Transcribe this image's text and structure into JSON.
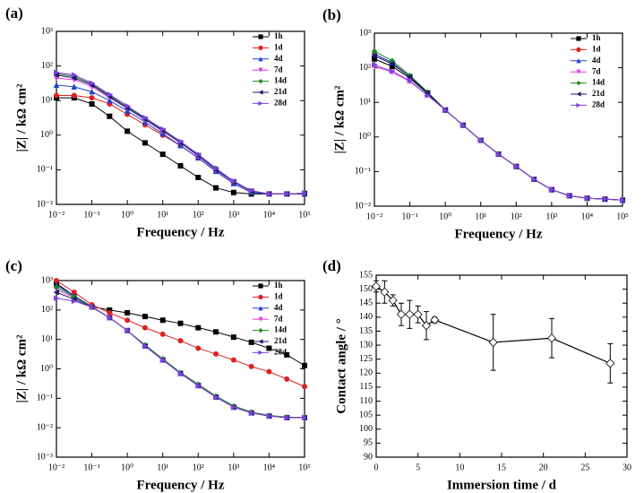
{
  "chart_data": [
    {
      "type": "line",
      "panel_label": "(a)",
      "xlabel": "Frequency / Hz",
      "ylabel": "|Z| / kΩ cm²",
      "xscale": "log",
      "yscale": "log",
      "legend": "upper right",
      "xlim": [
        0.01,
        100000
      ],
      "ylim": [
        0.01,
        1000
      ],
      "xticks": [
        {
          "value": 0.01,
          "label": "10⁻²"
        },
        {
          "value": 0.1,
          "label": "10⁻¹"
        },
        {
          "value": 1,
          "label": "10⁰"
        },
        {
          "value": 10,
          "label": "10¹"
        },
        {
          "value": 100,
          "label": "10²"
        },
        {
          "value": 1000,
          "label": "10³"
        },
        {
          "value": 10000,
          "label": "10⁴"
        },
        {
          "value": 100000,
          "label": "10⁵"
        }
      ],
      "yticks": [
        {
          "value": 0.01,
          "label": "10⁻²"
        },
        {
          "value": 0.1,
          "label": "10⁻¹"
        },
        {
          "value": 1,
          "label": "10⁰"
        },
        {
          "value": 10,
          "label": "10¹"
        },
        {
          "value": 100,
          "label": "10²"
        },
        {
          "value": 1000,
          "label": "10³"
        }
      ],
      "x": [
        0.01,
        0.0316,
        0.1,
        0.316,
        1,
        3.16,
        10,
        31.6,
        100,
        316,
        1000,
        3162,
        10000,
        31623,
        100000
      ],
      "series": [
        {
          "name": "1h",
          "color": "#000000",
          "marker": "square",
          "values": [
            12,
            12,
            8,
            3.5,
            1.3,
            0.6,
            0.28,
            0.13,
            0.06,
            0.03,
            0.022,
            0.02,
            0.02,
            0.02,
            0.02
          ]
        },
        {
          "name": "1d",
          "color": "#e02020",
          "marker": "circle",
          "values": [
            14,
            14,
            12,
            8,
            4,
            2,
            1,
            0.5,
            0.22,
            0.09,
            0.04,
            0.022,
            0.02,
            0.02,
            0.02
          ]
        },
        {
          "name": "4d",
          "color": "#1f3fd0",
          "marker": "triangle-up",
          "values": [
            28,
            25,
            18,
            10,
            5,
            2.4,
            1.1,
            0.5,
            0.22,
            0.09,
            0.04,
            0.022,
            0.02,
            0.02,
            0.02
          ]
        },
        {
          "name": "7d",
          "color": "#e040e0",
          "marker": "triangle-down",
          "values": [
            45,
            40,
            25,
            12,
            6,
            2.8,
            1.3,
            0.6,
            0.25,
            0.1,
            0.045,
            0.024,
            0.02,
            0.02,
            0.021
          ]
        },
        {
          "name": "14d",
          "color": "#1a8a1a",
          "marker": "diamond",
          "values": [
            60,
            50,
            30,
            14,
            6.5,
            3,
            1.4,
            0.62,
            0.27,
            0.11,
            0.045,
            0.024,
            0.02,
            0.02,
            0.021
          ]
        },
        {
          "name": "21d",
          "color": "#1a1a6a",
          "marker": "triangle-left",
          "values": [
            55,
            45,
            28,
            13,
            6,
            2.9,
            1.35,
            0.6,
            0.26,
            0.1,
            0.045,
            0.024,
            0.02,
            0.02,
            0.021
          ]
        },
        {
          "name": "28d",
          "color": "#8040e0",
          "marker": "triangle-right",
          "values": [
            65,
            55,
            32,
            15,
            7,
            3.2,
            1.5,
            0.66,
            0.28,
            0.11,
            0.047,
            0.025,
            0.02,
            0.02,
            0.021
          ]
        }
      ]
    },
    {
      "type": "line",
      "panel_label": "(b)",
      "xlabel": "Frequency / Hz",
      "ylabel": "|Z| / kΩ cm²",
      "xscale": "log",
      "yscale": "log",
      "legend": "upper right",
      "xlim": [
        0.01,
        100000
      ],
      "ylim": [
        0.01,
        1000
      ],
      "xticks": [
        {
          "value": 0.01,
          "label": "10⁻²"
        },
        {
          "value": 0.1,
          "label": "10⁻¹"
        },
        {
          "value": 1,
          "label": "10⁰"
        },
        {
          "value": 10,
          "label": "10¹"
        },
        {
          "value": 100,
          "label": "10²"
        },
        {
          "value": 1000,
          "label": "10³"
        },
        {
          "value": 10000,
          "label": "10⁴"
        },
        {
          "value": 100000,
          "label": "10⁵"
        }
      ],
      "yticks": [
        {
          "value": 0.01,
          "label": "10⁻²"
        },
        {
          "value": 0.1,
          "label": "10⁻¹"
        },
        {
          "value": 1,
          "label": "10⁰"
        },
        {
          "value": 10,
          "label": "10¹"
        },
        {
          "value": 100,
          "label": "10²"
        },
        {
          "value": 1000,
          "label": "10³"
        }
      ],
      "x": [
        0.01,
        0.0316,
        0.1,
        0.316,
        1,
        3.16,
        10,
        31.6,
        100,
        316,
        1000,
        3162,
        10000,
        31623,
        100000
      ],
      "series": [
        {
          "name": "1h",
          "color": "#000000",
          "marker": "square",
          "values": [
            180,
            110,
            50,
            18,
            6,
            2.2,
            0.8,
            0.32,
            0.14,
            0.06,
            0.03,
            0.02,
            0.017,
            0.016,
            0.015
          ]
        },
        {
          "name": "1d",
          "color": "#e02020",
          "marker": "circle",
          "values": [
            250,
            140,
            55,
            19,
            6,
            2.2,
            0.8,
            0.32,
            0.14,
            0.06,
            0.03,
            0.02,
            0.017,
            0.016,
            0.015
          ]
        },
        {
          "name": "4d",
          "color": "#1f3fd0",
          "marker": "triangle-up",
          "values": [
            250,
            140,
            55,
            19,
            6,
            2.2,
            0.8,
            0.32,
            0.14,
            0.06,
            0.03,
            0.02,
            0.017,
            0.016,
            0.015
          ]
        },
        {
          "name": "7d",
          "color": "#e040e0",
          "marker": "triangle-down",
          "values": [
            110,
            75,
            40,
            16,
            6,
            2.2,
            0.8,
            0.32,
            0.14,
            0.06,
            0.03,
            0.02,
            0.017,
            0.016,
            0.015
          ]
        },
        {
          "name": "14d",
          "color": "#1a8a1a",
          "marker": "diamond",
          "values": [
            300,
            160,
            60,
            20,
            6,
            2.2,
            0.8,
            0.32,
            0.14,
            0.06,
            0.03,
            0.02,
            0.017,
            0.016,
            0.015
          ]
        },
        {
          "name": "21d",
          "color": "#1a1a6a",
          "marker": "triangle-left",
          "values": [
            220,
            130,
            55,
            19,
            6,
            2.2,
            0.8,
            0.32,
            0.14,
            0.06,
            0.03,
            0.02,
            0.017,
            0.016,
            0.015
          ]
        },
        {
          "name": "28d",
          "color": "#8040e0",
          "marker": "triangle-right",
          "values": [
            120,
            80,
            42,
            16,
            6,
            2.2,
            0.8,
            0.32,
            0.14,
            0.06,
            0.03,
            0.02,
            0.017,
            0.016,
            0.015
          ]
        }
      ]
    },
    {
      "type": "line",
      "panel_label": "(c)",
      "xlabel": "Frequency / Hz",
      "ylabel": "|Z| / kΩ cm²",
      "xscale": "log",
      "yscale": "log",
      "legend": "upper right",
      "xlim": [
        0.01,
        100000
      ],
      "ylim": [
        0.001,
        1000
      ],
      "xticks": [
        {
          "value": 0.01,
          "label": "10⁻²"
        },
        {
          "value": 0.1,
          "label": "10⁻¹"
        },
        {
          "value": 1,
          "label": "10⁰"
        },
        {
          "value": 10,
          "label": "10¹"
        },
        {
          "value": 100,
          "label": "10²"
        },
        {
          "value": 1000,
          "label": "10³"
        },
        {
          "value": 10000,
          "label": "10⁴"
        },
        {
          "value": 100000,
          "label": "10⁵"
        }
      ],
      "yticks": [
        {
          "value": 0.001,
          "label": "10⁻³"
        },
        {
          "value": 0.01,
          "label": "10⁻²"
        },
        {
          "value": 0.1,
          "label": "10⁻¹"
        },
        {
          "value": 1,
          "label": "10⁰"
        },
        {
          "value": 10,
          "label": "10¹"
        },
        {
          "value": 100,
          "label": "10²"
        },
        {
          "value": 1000,
          "label": "10³"
        }
      ],
      "x": [
        0.01,
        0.0316,
        0.1,
        0.316,
        1,
        3.16,
        10,
        31.6,
        100,
        316,
        1000,
        3162,
        10000,
        31623,
        100000
      ],
      "series": [
        {
          "name": "1h",
          "color": "#000000",
          "marker": "square",
          "values": [
            800,
            300,
            130,
            100,
            80,
            60,
            45,
            35,
            25,
            18,
            12,
            8,
            5,
            3,
            1.3
          ]
        },
        {
          "name": "1d",
          "color": "#e02020",
          "marker": "circle",
          "values": [
            1000,
            400,
            150,
            80,
            45,
            25,
            15,
            9,
            5,
            3.2,
            2,
            1.2,
            0.8,
            0.45,
            0.25
          ]
        },
        {
          "name": "4d",
          "color": "#1f3fd0",
          "marker": "triangle-up",
          "values": [
            700,
            300,
            130,
            55,
            20,
            6,
            2,
            0.7,
            0.27,
            0.11,
            0.05,
            0.032,
            0.025,
            0.022,
            0.022
          ]
        },
        {
          "name": "7d",
          "color": "#e040e0",
          "marker": "triangle-down",
          "values": [
            500,
            260,
            125,
            55,
            20,
            6,
            2,
            0.7,
            0.27,
            0.11,
            0.05,
            0.032,
            0.025,
            0.022,
            0.022
          ]
        },
        {
          "name": "14d",
          "color": "#1a8a1a",
          "marker": "diamond",
          "values": [
            600,
            280,
            125,
            55,
            20,
            6.5,
            2.2,
            0.75,
            0.3,
            0.12,
            0.055,
            0.034,
            0.026,
            0.023,
            0.022
          ]
        },
        {
          "name": "21d",
          "color": "#1a1a6a",
          "marker": "triangle-left",
          "values": [
            400,
            230,
            125,
            55,
            20,
            6,
            2,
            0.7,
            0.27,
            0.11,
            0.05,
            0.032,
            0.025,
            0.022,
            0.022
          ]
        },
        {
          "name": "28d",
          "color": "#8040e0",
          "marker": "triangle-right",
          "values": [
            250,
            200,
            125,
            55,
            20,
            6,
            2,
            0.7,
            0.27,
            0.11,
            0.05,
            0.032,
            0.025,
            0.022,
            0.022
          ]
        }
      ]
    },
    {
      "type": "errorline",
      "panel_label": "(d)",
      "xlabel": "Immersion time / d",
      "ylabel": "Contact angle / °",
      "xscale": "linear",
      "yscale": "linear",
      "xlim": [
        0,
        30
      ],
      "ylim": [
        90,
        155
      ],
      "xticks": [
        0,
        5,
        10,
        15,
        20,
        25,
        30
      ],
      "yticks": [
        90,
        95,
        100,
        105,
        110,
        115,
        120,
        125,
        130,
        135,
        140,
        145,
        150,
        155
      ],
      "x": [
        0,
        1,
        2,
        3,
        4,
        5,
        6,
        7,
        14,
        21,
        28
      ],
      "series": [
        {
          "color": "#000000",
          "marker": "diamond-open",
          "values": [
            151,
            149,
            146,
            141,
            141,
            141,
            137,
            139,
            131,
            132.5,
            123.5
          ],
          "errors": [
            2,
            4,
            2,
            4,
            5,
            3,
            5,
            1,
            10,
            7,
            7
          ]
        }
      ]
    }
  ]
}
